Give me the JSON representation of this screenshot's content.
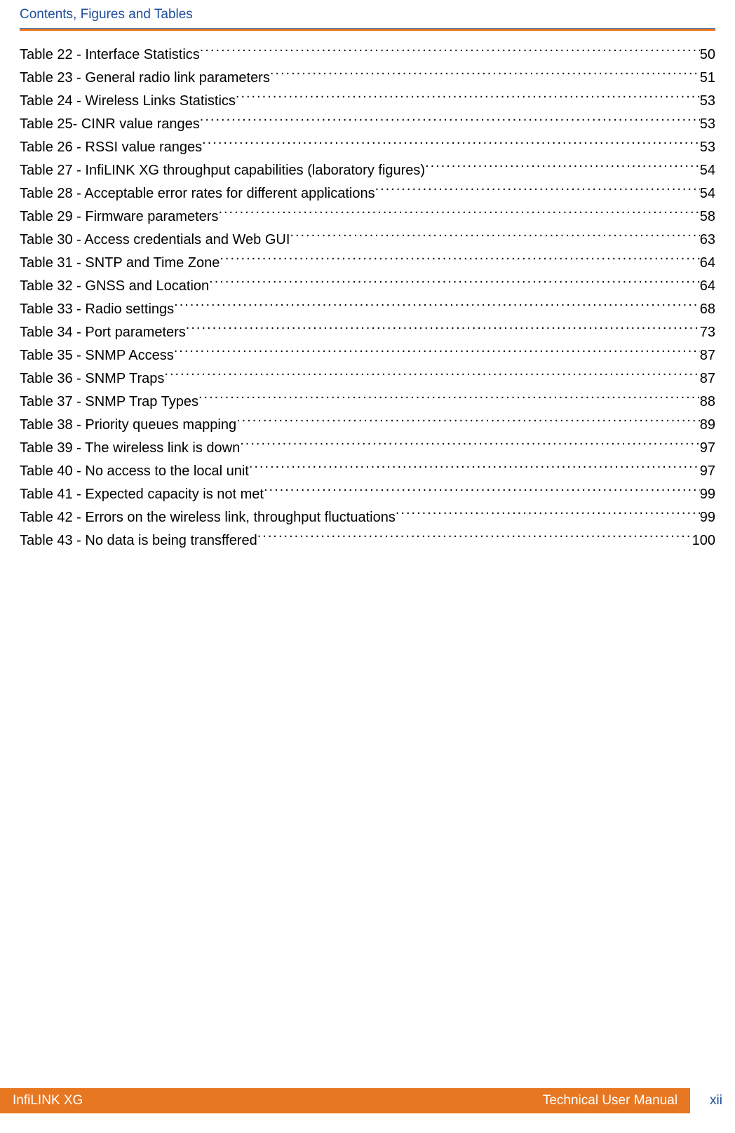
{
  "header": {
    "title": "Contents, Figures and Tables",
    "rule_top_color": "#4a7bb8",
    "rule_bottom_color": "#e87722"
  },
  "toc": {
    "entries": [
      {
        "label": "Table 22 - Interface Statistics",
        "page": "50"
      },
      {
        "label": "Table 23 - General radio link parameters",
        "page": "51"
      },
      {
        "label": "Table 24 - Wireless Links Statistics",
        "page": "53"
      },
      {
        "label": "Table 25- CINR value ranges",
        "page": "53"
      },
      {
        "label": "Table 26 - RSSI value ranges",
        "page": "53"
      },
      {
        "label": "Table 27 - InfiLINK XG throughput capabilities (laboratory figures)",
        "page": "54"
      },
      {
        "label": "Table 28 - Acceptable error rates for different applications",
        "page": "54"
      },
      {
        "label": "Table 29 - Firmware parameters",
        "page": "58"
      },
      {
        "label": "Table 30 - Access credentials and Web GUI",
        "page": "63"
      },
      {
        "label": "Table 31 - SNTP and Time Zone",
        "page": "64"
      },
      {
        "label": "Table 32 - GNSS and Location",
        "page": "64"
      },
      {
        "label": "Table 33 - Radio settings",
        "page": "68"
      },
      {
        "label": "Table 34 - Port parameters",
        "page": "73"
      },
      {
        "label": "Table 35 - SNMP Access",
        "page": "87"
      },
      {
        "label": "Table 36 - SNMP Traps",
        "page": "87"
      },
      {
        "label": "Table 37 - SNMP Trap Types",
        "page": "88"
      },
      {
        "label": "Table 38 - Priority queues mapping",
        "page": "89"
      },
      {
        "label": "Table 39 - The wireless link is down",
        "page": "97"
      },
      {
        "label": "Table 40 - No access to the local unit",
        "page": "97"
      },
      {
        "label": "Table 41 - Expected capacity is not met",
        "page": "99"
      },
      {
        "label": "Table 42 - Errors on the wireless link, throughput fluctuations",
        "page": "99"
      },
      {
        "label": "Table 43 - No data is being transffered",
        "page": "100"
      }
    ]
  },
  "footer": {
    "left": "InfiLINK XG",
    "right": "Technical User Manual",
    "page_number": "xii",
    "bar_color": "#e87722",
    "text_color": "#ffffff",
    "page_number_color": "#1f4e9c"
  }
}
